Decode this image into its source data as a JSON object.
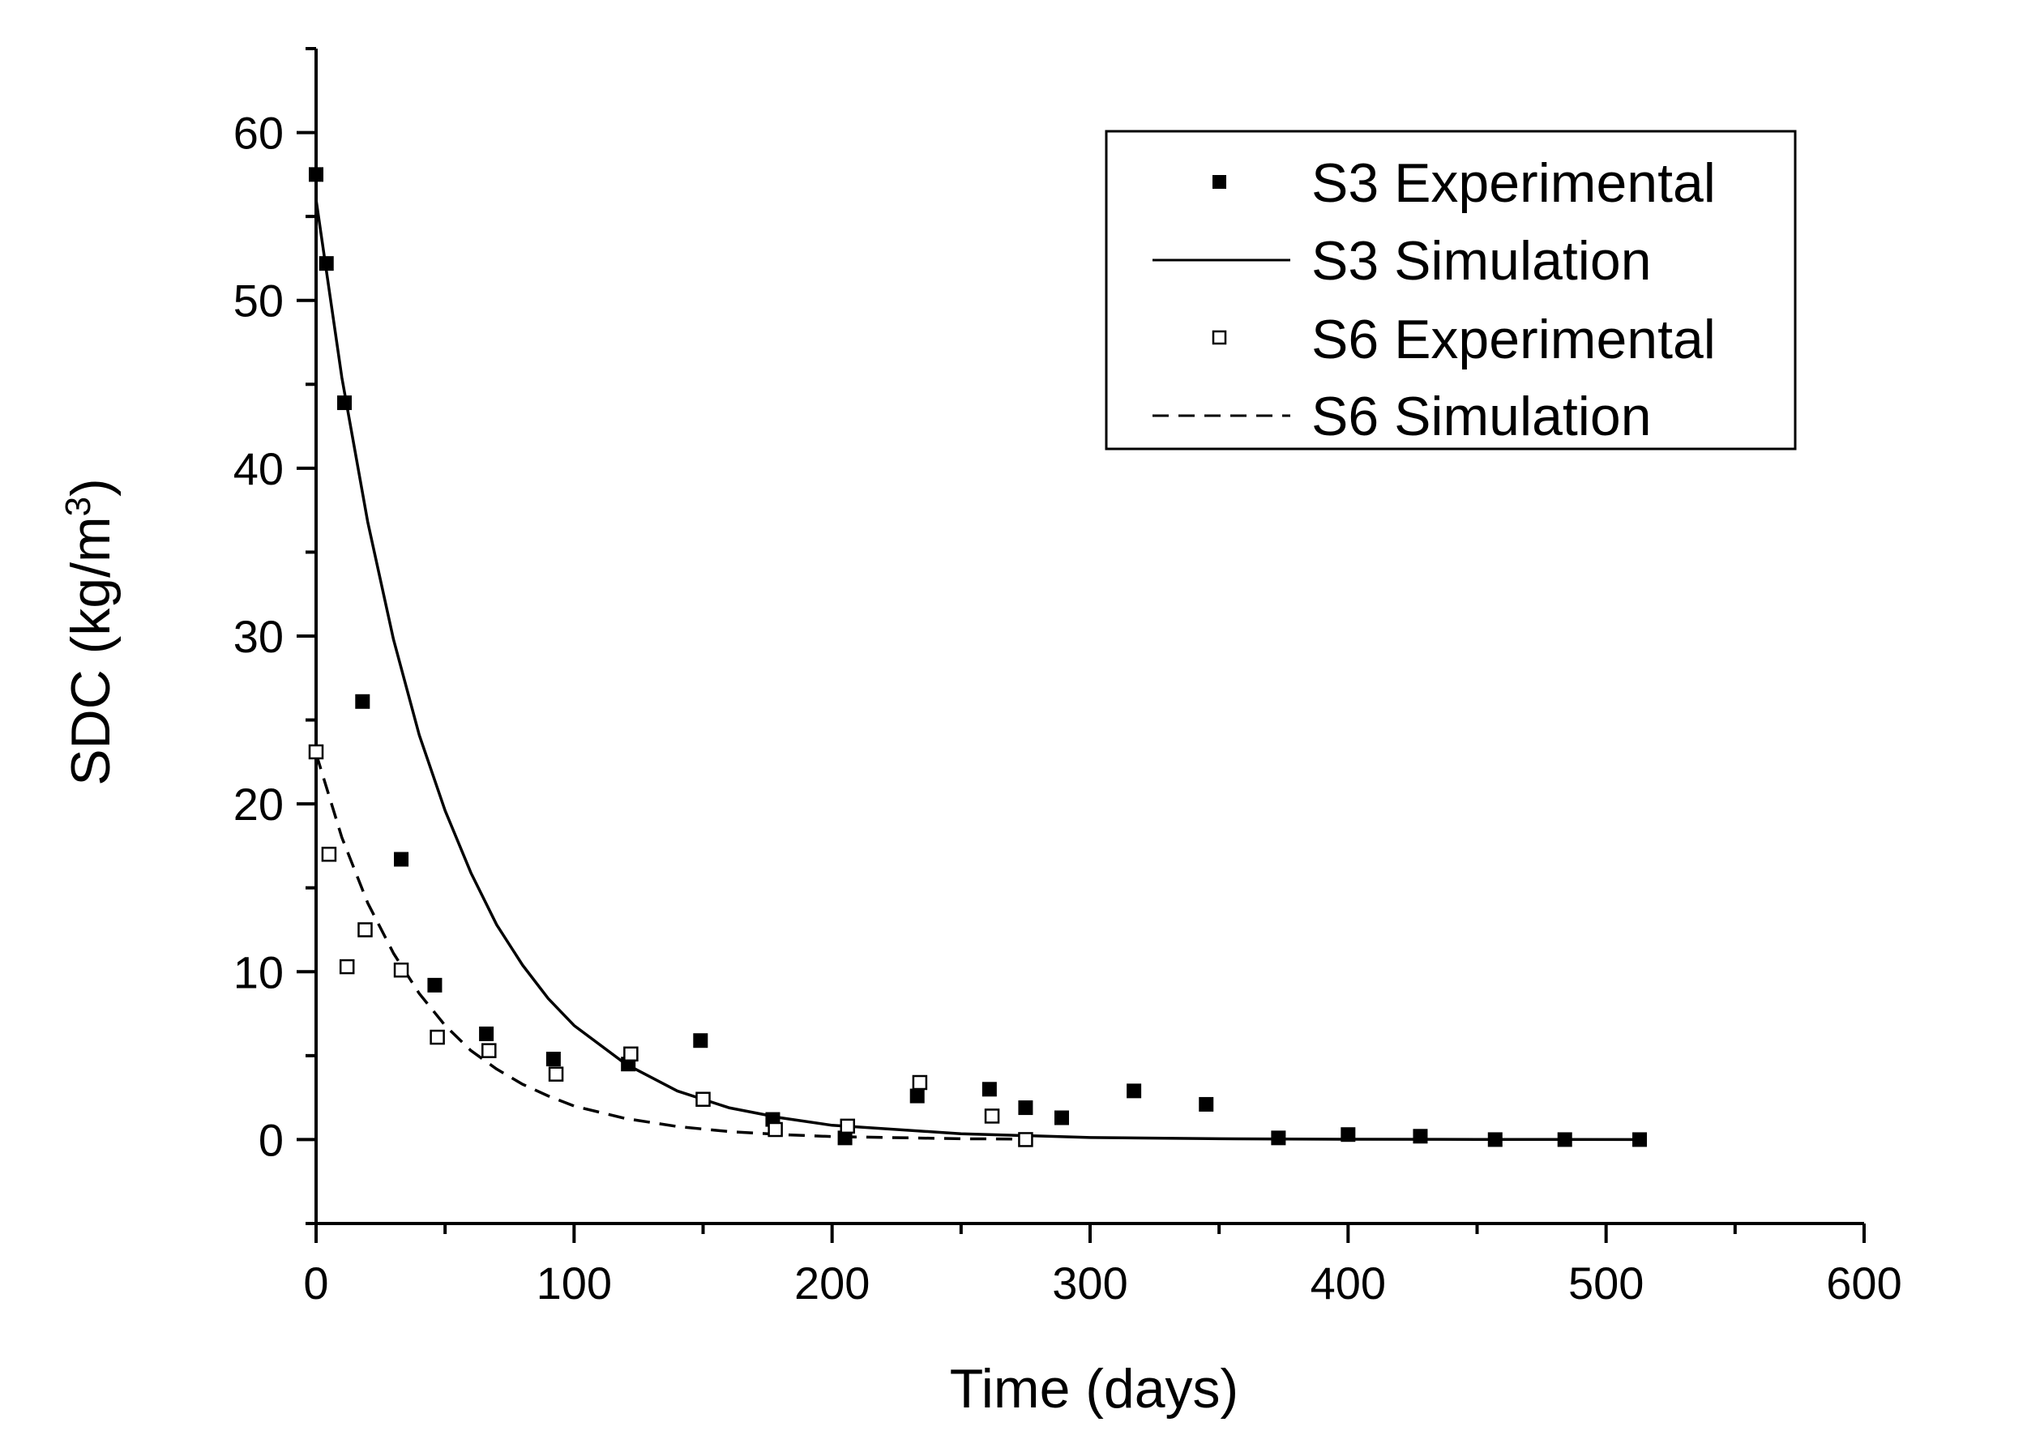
{
  "chart_data": {
    "type": "scatter",
    "title": "",
    "xlabel": "Time (days)",
    "ylabel": "SDC (kg/m",
    "ylabel_superscript": "3",
    "ylabel_close": ")",
    "xlim": [
      0,
      600
    ],
    "ylim": [
      -5,
      65
    ],
    "x_major_ticks": [
      0,
      100,
      200,
      300,
      400,
      500,
      600
    ],
    "x_tick_labels": [
      "0",
      "100",
      "200",
      "300",
      "400",
      "500",
      "600"
    ],
    "x_minor_ticks": [
      50,
      150,
      250,
      350,
      450,
      550
    ],
    "y_major_ticks": [
      0,
      10,
      20,
      30,
      40,
      50,
      60
    ],
    "y_tick_labels": [
      "0",
      "10",
      "20",
      "30",
      "40",
      "50",
      "60"
    ],
    "y_minor_ticks": [
      -5,
      5,
      15,
      25,
      35,
      45,
      55,
      65
    ],
    "grid": false,
    "legend_position": "top-right",
    "series": [
      {
        "name": "S3 Experimental",
        "kind": "marker",
        "marker": "filled-square",
        "x": [
          0,
          4,
          11,
          18,
          33,
          46,
          66,
          92,
          121,
          149,
          177,
          205,
          233,
          261,
          275,
          289,
          317,
          345,
          373,
          400,
          428,
          457,
          484,
          513
        ],
        "y": [
          57.5,
          52.2,
          43.9,
          26.1,
          16.7,
          9.2,
          6.3,
          4.8,
          4.5,
          5.9,
          1.2,
          0.1,
          2.6,
          3.0,
          1.9,
          1.3,
          2.9,
          2.1,
          0.1,
          0.3,
          0.2,
          0.0,
          0.0,
          0.0
        ]
      },
      {
        "name": "S3 Simulation",
        "kind": "line",
        "dash": "solid",
        "x": [
          0,
          10,
          20,
          30,
          40,
          50,
          60,
          70,
          80,
          90,
          100,
          120,
          140,
          160,
          180,
          200,
          250,
          300,
          350,
          400,
          450,
          513
        ],
        "y": [
          56.0,
          45.4,
          36.8,
          29.8,
          24.1,
          19.6,
          15.9,
          12.8,
          10.4,
          8.4,
          6.8,
          4.5,
          2.9,
          1.9,
          1.3,
          0.85,
          0.35,
          0.12,
          0.05,
          0.02,
          0.01,
          0.0
        ]
      },
      {
        "name": "S6 Experimental",
        "kind": "marker",
        "marker": "open-square",
        "x": [
          0,
          5,
          12,
          19,
          33,
          47,
          67,
          93,
          122,
          150,
          178,
          206,
          234,
          262,
          275
        ],
        "y": [
          23.1,
          17.0,
          10.3,
          12.5,
          10.1,
          6.1,
          5.3,
          3.9,
          5.1,
          2.4,
          0.6,
          0.8,
          3.4,
          1.4,
          0.0
        ]
      },
      {
        "name": "S6 Simulation",
        "kind": "line",
        "dash": "dashed",
        "x": [
          0,
          10,
          20,
          30,
          40,
          50,
          60,
          70,
          80,
          90,
          100,
          120,
          140,
          160,
          180,
          200,
          250,
          275
        ],
        "y": [
          23.0,
          18.0,
          14.1,
          11.1,
          8.7,
          6.8,
          5.3,
          4.2,
          3.3,
          2.6,
          2.0,
          1.25,
          0.78,
          0.48,
          0.3,
          0.18,
          0.05,
          0.03
        ]
      }
    ]
  }
}
